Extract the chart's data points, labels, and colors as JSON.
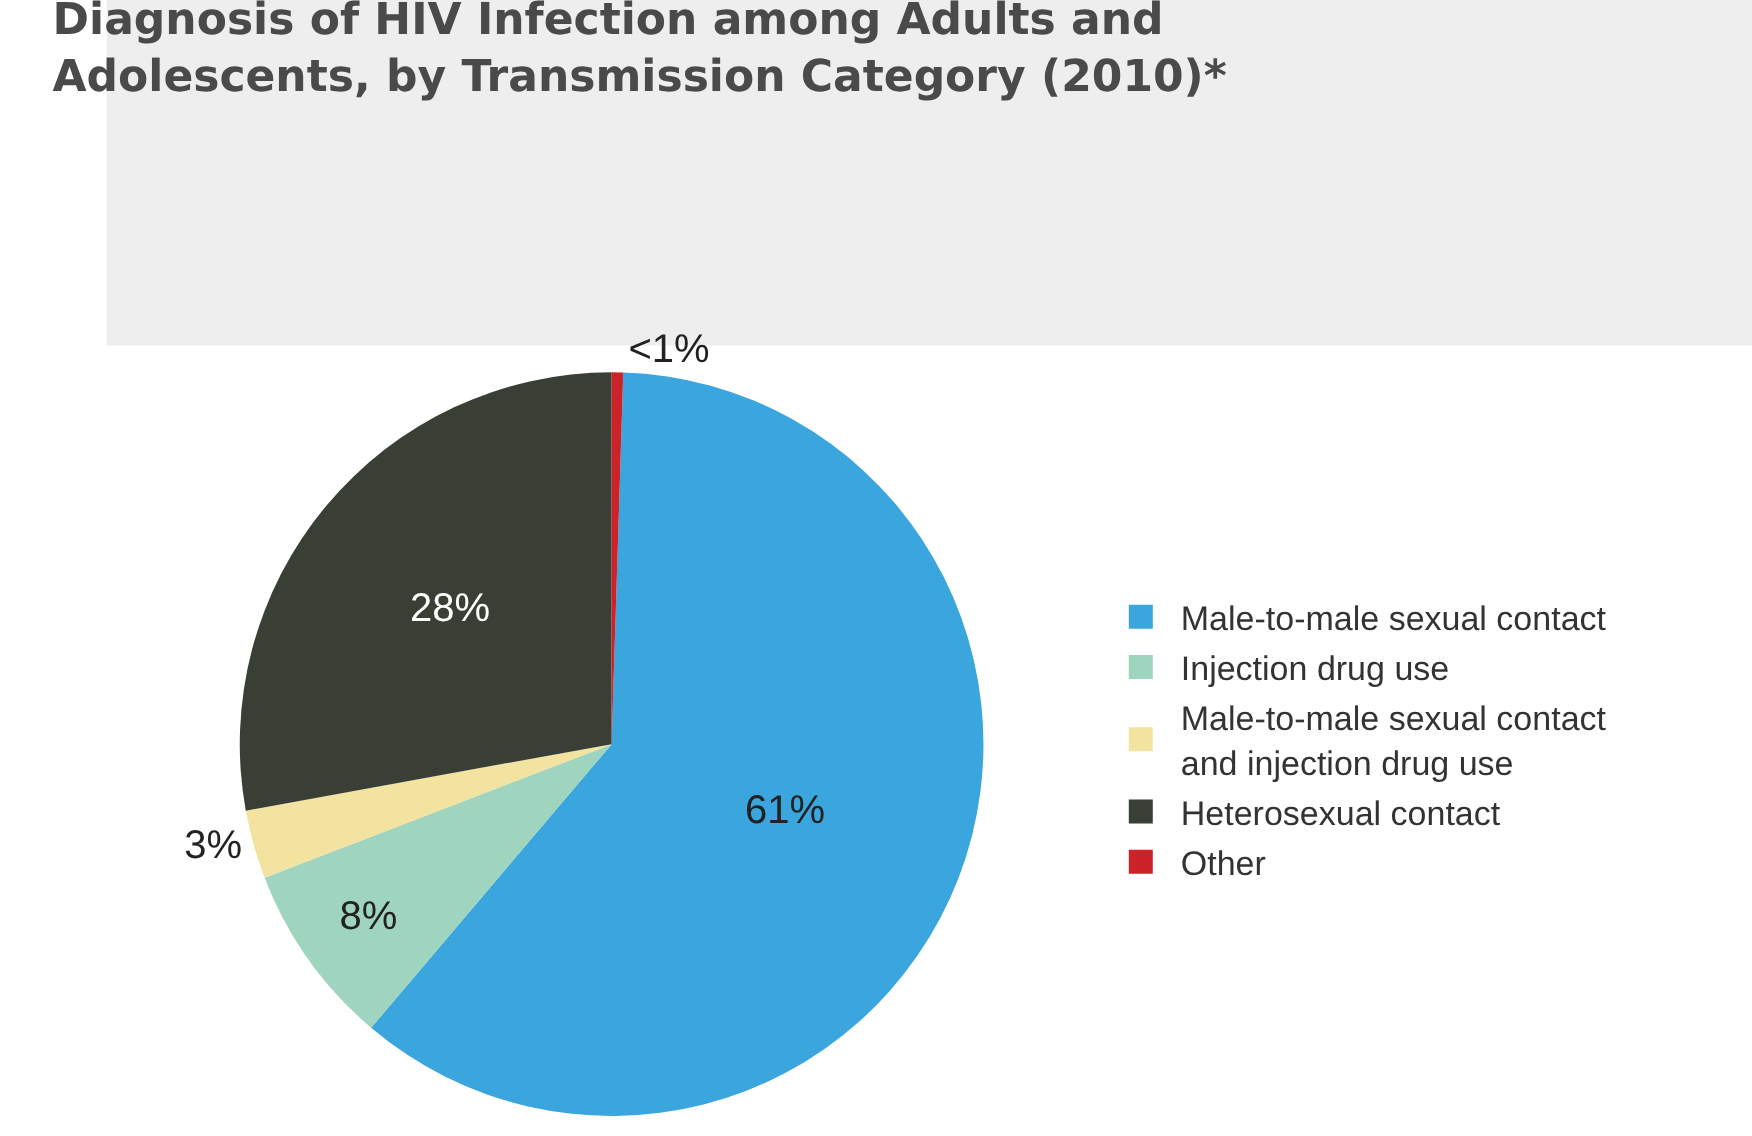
{
  "chart_data": {
    "type": "pie",
    "title": "Diagnosis of HIV Infection among Adults and\nAdolescents, by Transmission Category (2010)*",
    "categories": [
      "Male-to-male sexual contact",
      "Injection drug use",
      "Male-to-male sexual contact\nand injection drug use",
      "Heterosexual contact",
      "Other"
    ],
    "values": [
      61,
      8,
      3,
      28,
      0.5
    ],
    "value_labels": [
      "61%",
      "8%",
      "3%",
      "28%",
      "<1%"
    ],
    "colors": [
      "#3aa6dd",
      "#9fd4bf",
      "#f3e3a0",
      "#3a3f36",
      "#cc2229"
    ],
    "legend": "right"
  }
}
